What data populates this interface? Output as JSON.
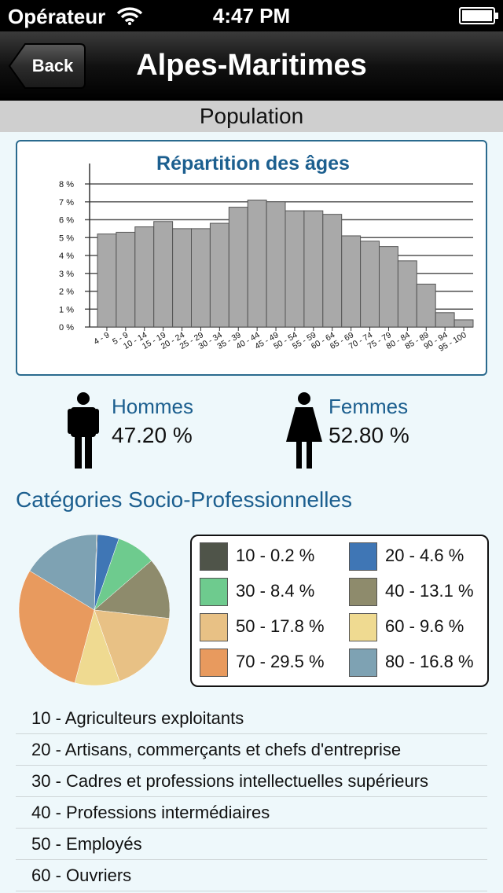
{
  "status_bar": {
    "carrier": "Opérateur",
    "time": "4:47 PM"
  },
  "nav": {
    "back_label": "Back",
    "title": "Alpes-Maritimes"
  },
  "section": {
    "title": "Population"
  },
  "age_chart": {
    "title": "Répartition des âges",
    "chart_data": {
      "type": "bar",
      "title": "Répartition des âges",
      "categories": [
        "4 - 9",
        "5 - 9",
        "10 - 14",
        "15 - 19",
        "20 - 24",
        "25 - 29",
        "30 - 34",
        "35 - 39",
        "40 - 44",
        "45 - 49",
        "50 - 54",
        "55 - 59",
        "60 - 64",
        "65 - 69",
        "70 - 74",
        "75 - 79",
        "80 - 84",
        "85 - 89",
        "90 - 94",
        "95 - 100"
      ],
      "values": [
        5.2,
        5.3,
        5.6,
        5.9,
        5.5,
        5.5,
        5.8,
        6.7,
        7.1,
        7.0,
        6.5,
        6.5,
        6.3,
        5.1,
        4.8,
        4.5,
        3.7,
        2.4,
        0.8,
        0.4
      ],
      "y_ticks": [
        "0 %",
        "1 %",
        "2 %",
        "3 %",
        "4 %",
        "5 %",
        "6 %",
        "7 %",
        "8 %"
      ],
      "ylim": [
        0,
        8
      ],
      "grid": true,
      "bar_color": "#a9a9a9"
    }
  },
  "gender": {
    "men": {
      "label": "Hommes",
      "value": "47.20 %",
      "icon": "man-icon"
    },
    "women": {
      "label": "Femmes",
      "value": "52.80 %",
      "icon": "woman-icon"
    }
  },
  "csp": {
    "title": "Catégories Socio-Professionnelles",
    "chart_data": {
      "type": "pie",
      "slices": [
        {
          "code": "10",
          "label": "10 - 0.2 %",
          "value": 0.2,
          "color": "#4f5449"
        },
        {
          "code": "20",
          "label": "20 - 4.6 %",
          "value": 4.6,
          "color": "#3f76b5"
        },
        {
          "code": "30",
          "label": "30 - 8.4 %",
          "value": 8.4,
          "color": "#6ecb8e"
        },
        {
          "code": "40",
          "label": "40 - 13.1 %",
          "value": 13.1,
          "color": "#8e8b6c"
        },
        {
          "code": "50",
          "label": "50 - 17.8 %",
          "value": 17.8,
          "color": "#e8c185"
        },
        {
          "code": "60",
          "label": "60 - 9.6 %",
          "value": 9.6,
          "color": "#efda91"
        },
        {
          "code": "70",
          "label": "70 - 29.5 %",
          "value": 29.5,
          "color": "#e89a5e"
        },
        {
          "code": "80",
          "label": "80 - 16.8 %",
          "value": 16.8,
          "color": "#7ea2b3"
        }
      ]
    },
    "descriptions": [
      "10 - Agriculteurs exploitants",
      "20 - Artisans, commerçants et chefs d'entreprise",
      "30 - Cadres et professions intellectuelles supérieurs",
      "40 - Professions intermédiaires",
      "50 - Employés",
      "60 - Ouvriers"
    ]
  }
}
